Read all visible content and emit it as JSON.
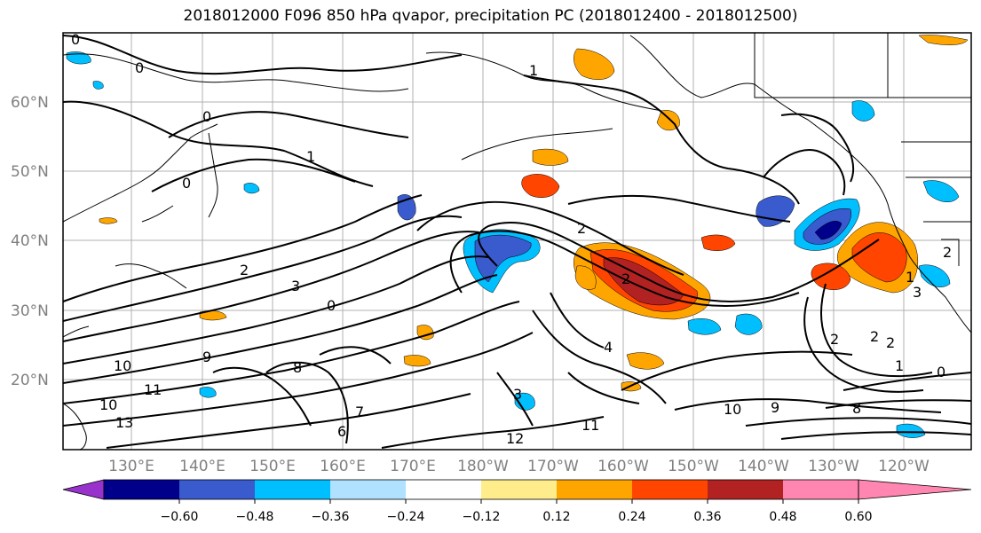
{
  "title": "2018012000 F096 850 hPa qvapor, precipitation PC (2018012400 - 2018012500)",
  "lat_labels": [
    "60°N",
    "50°N",
    "40°N",
    "30°N",
    "20°N"
  ],
  "lon_labels": [
    "130°E",
    "140°E",
    "150°E",
    "160°E",
    "170°E",
    "180°W",
    "170°W",
    "160°W",
    "150°W",
    "140°W",
    "130°W",
    "120°W"
  ],
  "contour_labels": [
    "0",
    "0",
    "0",
    "1",
    "0",
    "1",
    "2",
    "0",
    "3",
    "2",
    "2",
    "2",
    "2",
    "2",
    "1",
    "0",
    "9",
    "10",
    "11",
    "10",
    "13",
    "12",
    "11",
    "10",
    "9",
    "8",
    "6",
    "7",
    "8",
    "4",
    "3",
    "1",
    "2",
    "3"
  ],
  "colorbar": {
    "ticks": [
      "−0.60",
      "−0.48",
      "−0.36",
      "−0.24",
      "−0.12",
      "0.12",
      "0.24",
      "0.36",
      "0.48",
      "0.60"
    ],
    "colors": [
      "#9932cc",
      "#00008b",
      "#3a5bcd",
      "#00bfff",
      "#b0e2ff",
      "#ffffff",
      "#ffec8b",
      "#ffa500",
      "#ff4500",
      "#b22222",
      "#ff86b0"
    ]
  }
}
